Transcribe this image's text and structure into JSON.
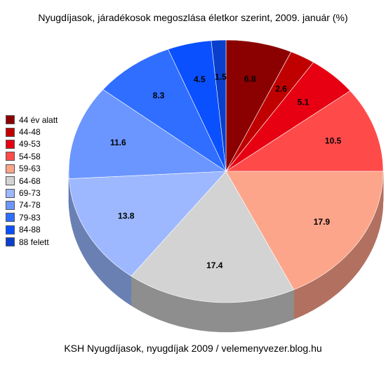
{
  "chart_data": {
    "type": "pie",
    "title": "Nyugdíjasok, járadékosok megoszlása életkor szerint, 2009. január (%)",
    "footer": "KSH Nyugdíjasok, nyugdíjak 2009 /  velemenyvezer.blog.hu",
    "legend_placement": "left",
    "slices": [
      {
        "label": "44 év alatt",
        "value": 6.8,
        "display": "6.8",
        "color": "#8B0000",
        "side": "#5E0000"
      },
      {
        "label": "44-48",
        "value": 2.6,
        "display": "2.6",
        "color": "#C00000",
        "side": "#820000"
      },
      {
        "label": "49-53",
        "value": 5.1,
        "display": "5.1",
        "color": "#E60012",
        "side": "#9C000C"
      },
      {
        "label": "54-58",
        "value": 10.5,
        "display": "10.5",
        "color": "#FF4A4A",
        "side": "#B23434"
      },
      {
        "label": "59-63",
        "value": 17.9,
        "display": "17.9",
        "color": "#FCA58A",
        "side": "#B27160"
      },
      {
        "label": "64-68",
        "value": 17.4,
        "display": "17.4",
        "color": "#D3D3D3",
        "side": "#8E8E8E"
      },
      {
        "label": "69-73",
        "value": 13.8,
        "display": "13.8",
        "color": "#9DB8FF",
        "side": "#6A80B3"
      },
      {
        "label": "74-78",
        "value": 11.6,
        "display": "11.6",
        "color": "#6B96FF",
        "side": "#4A68B3"
      },
      {
        "label": "79-83",
        "value": 8.3,
        "display": "8.3",
        "color": "#2F6EFF",
        "side": "#204DB3"
      },
      {
        "label": "84-88",
        "value": 4.5,
        "display": "4.5",
        "color": "#0A50FF",
        "side": "#0637B3"
      },
      {
        "label": "88 felett",
        "value": 1.5,
        "display": "1.5",
        "color": "#0A3FCC",
        "side": "#062B8E"
      }
    ]
  }
}
